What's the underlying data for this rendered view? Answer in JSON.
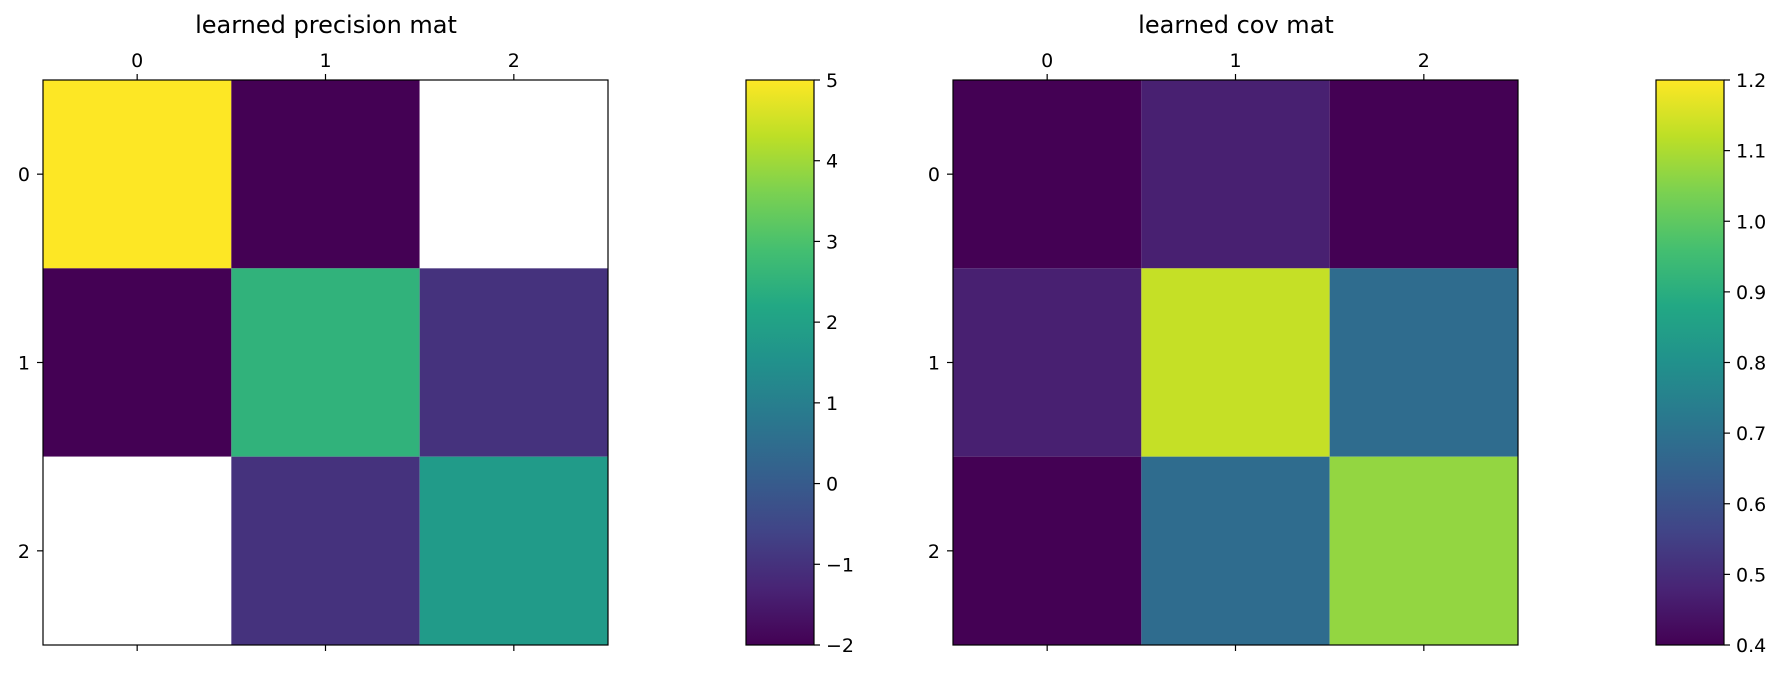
{
  "chart_data": [
    {
      "type": "heatmap",
      "title": "learned precision mat",
      "x_tick_labels": [
        "0",
        "1",
        "2"
      ],
      "y_tick_labels": [
        "0",
        "1",
        "2"
      ],
      "values": [
        [
          5.0,
          -2.0,
          null
        ],
        [
          -2.0,
          2.5,
          -1.0
        ],
        [
          null,
          -1.0,
          1.8
        ]
      ],
      "colormap": "viridis",
      "missing_color": "#ffffff",
      "colorbar": {
        "min": -2,
        "max": 5,
        "ticks": [
          -2,
          -1,
          0,
          1,
          2,
          3,
          4,
          5
        ],
        "tick_labels": [
          "−2",
          "−1",
          "0",
          "1",
          "2",
          "3",
          "4",
          "5"
        ]
      }
    },
    {
      "type": "heatmap",
      "title": "learned cov mat",
      "x_tick_labels": [
        "0",
        "1",
        "2"
      ],
      "y_tick_labels": [
        "0",
        "1",
        "2"
      ],
      "values": [
        [
          0.4,
          0.47,
          0.4
        ],
        [
          0.47,
          1.13,
          0.68
        ],
        [
          0.4,
          0.68,
          1.07
        ]
      ],
      "colormap": "viridis",
      "colorbar": {
        "min": 0.4,
        "max": 1.2,
        "ticks": [
          0.4,
          0.5,
          0.6,
          0.7,
          0.8,
          0.9,
          1.0,
          1.1,
          1.2
        ],
        "tick_labels": [
          "0.4",
          "0.5",
          "0.6",
          "0.7",
          "0.8",
          "0.9",
          "1.0",
          "1.1",
          "1.2"
        ]
      }
    }
  ]
}
